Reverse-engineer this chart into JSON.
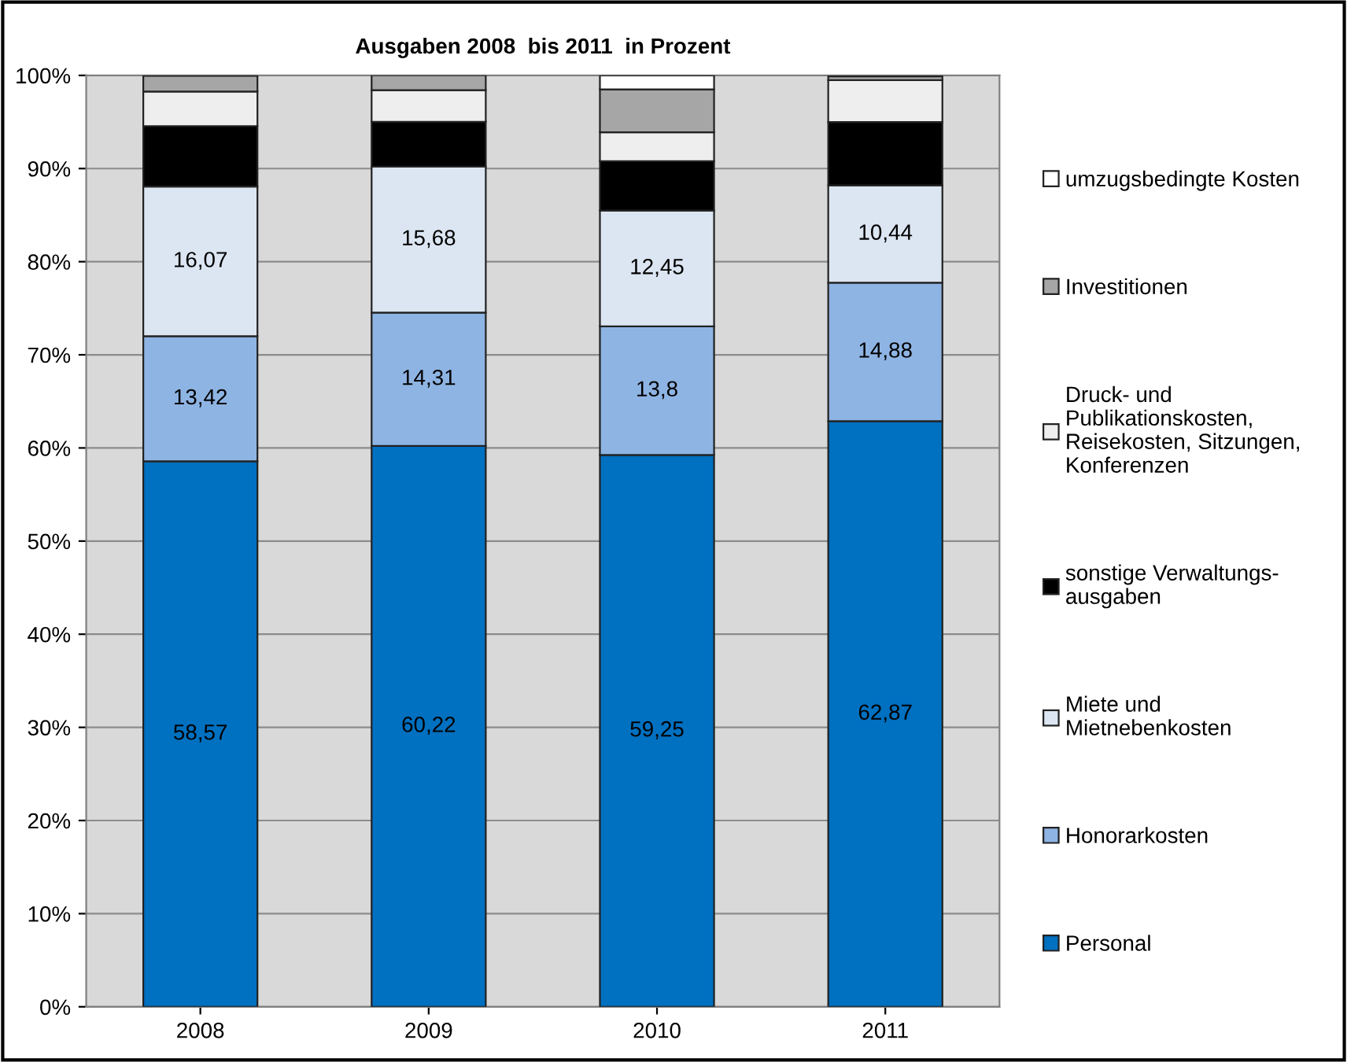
{
  "chart_data": {
    "type": "bar",
    "stacked": true,
    "title": "Ausgaben 2008  bis 2011  in Prozent",
    "categories": [
      "2008",
      "2009",
      "2010",
      "2011"
    ],
    "series": [
      {
        "name": "Personal",
        "color": "#0070c0",
        "values": [
          58.57,
          60.22,
          59.25,
          62.87
        ],
        "value_labels": [
          "58,57",
          "60,22",
          "59,25",
          "62,87"
        ]
      },
      {
        "name": "Honorarkosten",
        "color": "#8eb4e3",
        "values": [
          13.42,
          14.31,
          13.8,
          14.88
        ],
        "value_labels": [
          "13,42",
          "14,31",
          "13,8",
          "14,88"
        ]
      },
      {
        "name": "Miete und\nMietnebenkosten",
        "color": "#dce6f2",
        "values": [
          16.07,
          15.68,
          12.45,
          10.44
        ],
        "value_labels": [
          "16,07",
          "15,68",
          "12,45",
          "10,44"
        ]
      },
      {
        "name": "sonstige Verwaltungs-\nausgaben",
        "color": "#000000",
        "values": [
          6.5,
          4.8,
          5.3,
          6.8
        ]
      },
      {
        "name": "Druck- und\nPublikationskosten,\nReisekosten, Sitzungen,\nKonferenzen",
        "color": "#eeeeee",
        "values": [
          3.7,
          3.4,
          3.1,
          4.5
        ]
      },
      {
        "name": "Investitionen",
        "color": "#a6a6a6",
        "values": [
          1.7,
          1.6,
          4.6,
          0.4
        ]
      },
      {
        "name": "umzugsbedingte Kosten",
        "color": "#ffffff",
        "values": [
          null,
          null,
          1.5,
          null
        ]
      }
    ],
    "ylim": [
      0,
      100
    ],
    "yticks": [
      {
        "value": 0,
        "label": "0%"
      },
      {
        "value": 10,
        "label": "10%"
      },
      {
        "value": 20,
        "label": "20%"
      },
      {
        "value": 30,
        "label": "30%"
      },
      {
        "value": 40,
        "label": "40%"
      },
      {
        "value": 50,
        "label": "50%"
      },
      {
        "value": 60,
        "label": "60%"
      },
      {
        "value": 70,
        "label": "70%"
      },
      {
        "value": 80,
        "label": "80%"
      },
      {
        "value": 90,
        "label": "90%"
      },
      {
        "value": 100,
        "label": "100%"
      }
    ],
    "grid": "y",
    "legend": "right"
  }
}
